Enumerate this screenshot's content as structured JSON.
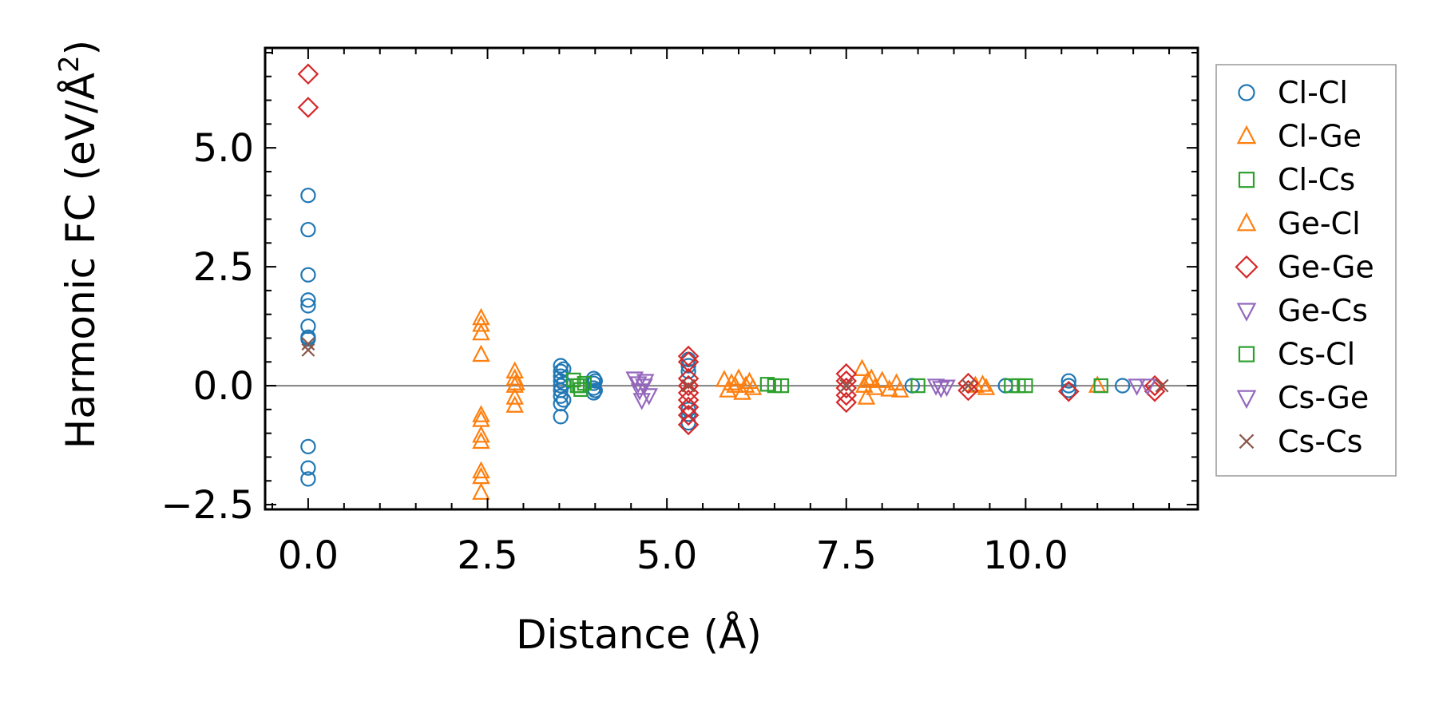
{
  "chart_data": {
    "type": "scatter",
    "xlabel": "Distance (Å)",
    "ylabel_main": "Harmonic FC (eV/Å",
    "ylabel_sup": "2",
    "ylabel_close": ")",
    "xlim": [
      -0.6,
      12.4
    ],
    "ylim": [
      -2.6,
      7.1
    ],
    "x_ticks": [
      0,
      2.5,
      5,
      7.5,
      10
    ],
    "x_tick_labels": [
      "0.0",
      "2.5",
      "5.0",
      "7.5",
      "10.0"
    ],
    "y_ticks": [
      -2.5,
      0,
      2.5,
      5
    ],
    "y_tick_labels": [
      "−2.5",
      "0.0",
      "2.5",
      "5.0"
    ],
    "zero_line": 0,
    "legend_location": "outside right",
    "series": [
      {
        "name": "Cl-Cl",
        "marker": "circle",
        "color": "#1f77b4",
        "points": [
          [
            0,
            4.0
          ],
          [
            0,
            3.28
          ],
          [
            0,
            2.33
          ],
          [
            0,
            1.8
          ],
          [
            0,
            1.68
          ],
          [
            0,
            1.25
          ],
          [
            0,
            1.02
          ],
          [
            0,
            0.98
          ],
          [
            0,
            -1.28
          ],
          [
            0,
            -1.73
          ],
          [
            0,
            -1.96
          ],
          [
            3.52,
            0.42
          ],
          [
            3.52,
            0.3
          ],
          [
            3.52,
            0.2
          ],
          [
            3.52,
            0.1
          ],
          [
            3.52,
            0.0
          ],
          [
            3.52,
            -0.1
          ],
          [
            3.52,
            -0.22
          ],
          [
            3.52,
            -0.38
          ],
          [
            3.52,
            -0.65
          ],
          [
            3.56,
            0.35
          ],
          [
            3.56,
            0.05
          ],
          [
            3.56,
            -0.3
          ],
          [
            3.98,
            0.15
          ],
          [
            3.98,
            0.05
          ],
          [
            3.98,
            -0.05
          ],
          [
            3.98,
            -0.15
          ],
          [
            4.0,
            0.1
          ],
          [
            4.0,
            -0.1
          ],
          [
            5.3,
            0.55
          ],
          [
            5.3,
            0.42
          ],
          [
            5.3,
            0.3
          ],
          [
            5.3,
            -0.5
          ],
          [
            5.3,
            -0.6
          ],
          [
            5.3,
            -0.78
          ],
          [
            8.42,
            0.0
          ],
          [
            9.72,
            0.0
          ],
          [
            10.6,
            0.1
          ],
          [
            10.6,
            0.0
          ],
          [
            10.6,
            -0.1
          ],
          [
            11.35,
            0.0
          ]
        ]
      },
      {
        "name": "Cl-Ge",
        "marker": "triangle-up",
        "color": "#ff7f0e",
        "points": [
          [
            2.41,
            1.42
          ],
          [
            2.41,
            1.28
          ],
          [
            2.41,
            1.1
          ],
          [
            2.41,
            0.65
          ],
          [
            2.41,
            -0.62
          ],
          [
            2.41,
            -0.72
          ],
          [
            2.41,
            -1.05
          ],
          [
            2.41,
            -1.18
          ],
          [
            2.41,
            -1.8
          ],
          [
            2.41,
            -1.92
          ],
          [
            2.41,
            -2.25
          ],
          [
            2.88,
            0.3
          ],
          [
            2.88,
            0.15
          ],
          [
            2.88,
            0.0
          ],
          [
            2.88,
            -0.25
          ],
          [
            2.88,
            -0.42
          ],
          [
            5.8,
            0.12
          ],
          [
            5.85,
            -0.1
          ],
          [
            5.9,
            0.05
          ],
          [
            6.0,
            0.15
          ],
          [
            6.05,
            -0.15
          ],
          [
            6.1,
            0.0
          ],
          [
            6.15,
            0.08
          ],
          [
            6.2,
            -0.05
          ],
          [
            7.72,
            0.35
          ],
          [
            7.75,
            0.0
          ],
          [
            7.78,
            -0.25
          ],
          [
            7.85,
            0.15
          ],
          [
            7.9,
            -0.05
          ],
          [
            8.0,
            0.1
          ],
          [
            8.1,
            -0.08
          ],
          [
            8.2,
            0.05
          ],
          [
            8.25,
            -0.1
          ],
          [
            9.3,
            0.0
          ],
          [
            9.45,
            -0.05
          ],
          [
            11.0,
            0.0
          ]
        ]
      },
      {
        "name": "Cl-Cs",
        "marker": "square",
        "color": "#2ca02c",
        "points": [
          [
            3.7,
            0.12
          ],
          [
            3.75,
            0.0
          ],
          [
            3.8,
            -0.08
          ],
          [
            3.85,
            0.05
          ],
          [
            6.4,
            0.03
          ],
          [
            6.6,
            0.0
          ],
          [
            8.5,
            0.0
          ],
          [
            9.8,
            0.0
          ],
          [
            10.0,
            0.0
          ],
          [
            11.05,
            0.0
          ]
        ]
      },
      {
        "name": "Ge-Cl",
        "marker": "triangle-up",
        "color": "#ff7f0e",
        "points": [
          [
            2.9,
            0.05
          ],
          [
            5.95,
            0.0
          ],
          [
            7.8,
            0.1
          ],
          [
            9.4,
            0.02
          ]
        ]
      },
      {
        "name": "Ge-Ge",
        "marker": "diamond",
        "color": "#d62728",
        "points": [
          [
            0,
            6.55
          ],
          [
            0,
            5.85
          ],
          [
            5.3,
            0.62
          ],
          [
            5.3,
            0.5
          ],
          [
            5.3,
            0.15
          ],
          [
            5.3,
            0.0
          ],
          [
            5.3,
            -0.15
          ],
          [
            5.3,
            -0.3
          ],
          [
            5.3,
            -0.45
          ],
          [
            5.3,
            -0.62
          ],
          [
            5.3,
            -0.82
          ],
          [
            7.5,
            0.25
          ],
          [
            7.5,
            0.1
          ],
          [
            7.5,
            -0.05
          ],
          [
            7.5,
            -0.2
          ],
          [
            7.5,
            -0.35
          ],
          [
            9.2,
            0.05
          ],
          [
            9.2,
            -0.1
          ],
          [
            10.6,
            -0.12
          ],
          [
            11.8,
            0.0
          ],
          [
            11.8,
            -0.12
          ]
        ]
      },
      {
        "name": "Ge-Cs",
        "marker": "triangle-down",
        "color": "#9467bd",
        "points": [
          [
            4.55,
            0.15
          ],
          [
            4.6,
            0.05
          ],
          [
            4.62,
            -0.1
          ],
          [
            4.65,
            -0.3
          ],
          [
            4.7,
            0.1
          ],
          [
            4.75,
            -0.2
          ],
          [
            8.75,
            0.0
          ],
          [
            8.9,
            -0.02
          ],
          [
            11.55,
            0.0
          ]
        ]
      },
      {
        "name": "Cs-Cl",
        "marker": "square",
        "color": "#2ca02c",
        "points": [
          [
            3.78,
            0.0
          ],
          [
            6.5,
            0.0
          ],
          [
            9.9,
            0.0
          ]
        ]
      },
      {
        "name": "Cs-Ge",
        "marker": "triangle-down",
        "color": "#9467bd",
        "points": [
          [
            4.68,
            0.0
          ],
          [
            8.82,
            -0.05
          ],
          [
            11.7,
            0.0
          ]
        ]
      },
      {
        "name": "Cs-Cs",
        "marker": "cross",
        "color": "#8c564b",
        "points": [
          [
            0,
            0.88
          ],
          [
            0,
            0.75
          ],
          [
            5.3,
            0.0
          ],
          [
            7.5,
            0.0
          ],
          [
            9.2,
            0.0
          ],
          [
            11.9,
            0.0
          ]
        ]
      }
    ]
  }
}
